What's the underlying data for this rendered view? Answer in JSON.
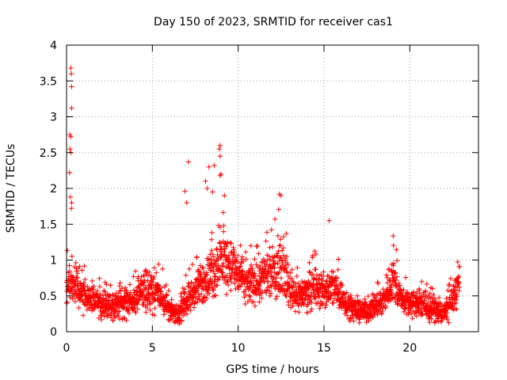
{
  "chart_data": {
    "type": "scatter",
    "title": "Day 150 of 2023, SRMTID for receiver cas1",
    "xlabel": "GPS time / hours",
    "ylabel": "SRMTID / TECUs",
    "xlim": [
      0,
      24
    ],
    "ylim": [
      0,
      4
    ],
    "grid": true,
    "marker": "+",
    "color": "#ff0000",
    "xticks": [
      {
        "value": 0,
        "label": "0"
      },
      {
        "value": 5,
        "label": "5"
      },
      {
        "value": 10,
        "label": "10"
      },
      {
        "value": 15,
        "label": "15"
      },
      {
        "value": 20,
        "label": "20"
      }
    ],
    "yticks": [
      {
        "value": 0,
        "label": "0"
      },
      {
        "value": 0.5,
        "label": "0.5"
      },
      {
        "value": 1,
        "label": "1"
      },
      {
        "value": 1.5,
        "label": "1.5"
      },
      {
        "value": 2,
        "label": "2"
      },
      {
        "value": 2.5,
        "label": "2.5"
      },
      {
        "value": 3,
        "label": "3"
      },
      {
        "value": 3.5,
        "label": "3.5"
      },
      {
        "value": 4,
        "label": "4"
      }
    ],
    "outliers": [
      [
        0.25,
        3.68
      ],
      [
        0.28,
        3.6
      ],
      [
        0.3,
        3.42
      ],
      [
        0.3,
        3.12
      ],
      [
        0.2,
        2.75
      ],
      [
        0.25,
        2.72
      ],
      [
        0.2,
        2.55
      ],
      [
        0.25,
        2.5
      ],
      [
        0.18,
        2.22
      ],
      [
        0.22,
        1.88
      ],
      [
        0.3,
        1.8
      ],
      [
        0.28,
        1.72
      ],
      [
        7.1,
        2.37
      ],
      [
        8.6,
        2.32
      ],
      [
        8.3,
        2.3
      ],
      [
        8.95,
        2.6
      ],
      [
        8.9,
        2.55
      ],
      [
        8.95,
        2.45
      ],
      [
        9.0,
        2.2
      ],
      [
        8.95,
        2.18
      ],
      [
        8.1,
        2.1
      ],
      [
        8.2,
        2.0
      ],
      [
        6.9,
        1.96
      ],
      [
        8.5,
        1.95
      ],
      [
        12.4,
        1.92
      ],
      [
        12.5,
        1.9
      ],
      [
        15.3,
        1.55
      ],
      [
        9.2,
        1.9
      ],
      [
        7.0,
        1.8
      ]
    ],
    "envelope": [
      [
        0.0,
        0.65
      ],
      [
        0.5,
        0.6
      ],
      [
        1.0,
        0.5
      ],
      [
        1.5,
        0.45
      ],
      [
        2.0,
        0.4
      ],
      [
        2.5,
        0.35
      ],
      [
        3.0,
        0.35
      ],
      [
        3.5,
        0.4
      ],
      [
        4.0,
        0.45
      ],
      [
        4.5,
        0.6
      ],
      [
        5.0,
        0.55
      ],
      [
        5.5,
        0.5
      ],
      [
        6.0,
        0.3
      ],
      [
        6.5,
        0.22
      ],
      [
        7.0,
        0.45
      ],
      [
        7.5,
        0.55
      ],
      [
        8.0,
        0.7
      ],
      [
        8.5,
        0.8
      ],
      [
        9.0,
        1.0
      ],
      [
        9.5,
        0.95
      ],
      [
        10.0,
        0.8
      ],
      [
        10.5,
        0.65
      ],
      [
        11.0,
        0.7
      ],
      [
        11.5,
        0.75
      ],
      [
        12.0,
        0.8
      ],
      [
        12.5,
        0.95
      ],
      [
        13.0,
        0.6
      ],
      [
        13.5,
        0.5
      ],
      [
        14.0,
        0.55
      ],
      [
        14.5,
        0.6
      ],
      [
        15.0,
        0.55
      ],
      [
        15.5,
        0.65
      ],
      [
        16.0,
        0.5
      ],
      [
        16.5,
        0.35
      ],
      [
        17.0,
        0.28
      ],
      [
        17.5,
        0.3
      ],
      [
        18.0,
        0.35
      ],
      [
        18.5,
        0.45
      ],
      [
        19.0,
        0.75
      ],
      [
        19.5,
        0.45
      ],
      [
        20.0,
        0.4
      ],
      [
        20.5,
        0.38
      ],
      [
        21.0,
        0.35
      ],
      [
        21.5,
        0.3
      ],
      [
        22.0,
        0.25
      ],
      [
        22.5,
        0.45
      ],
      [
        22.9,
        0.7
      ]
    ]
  }
}
